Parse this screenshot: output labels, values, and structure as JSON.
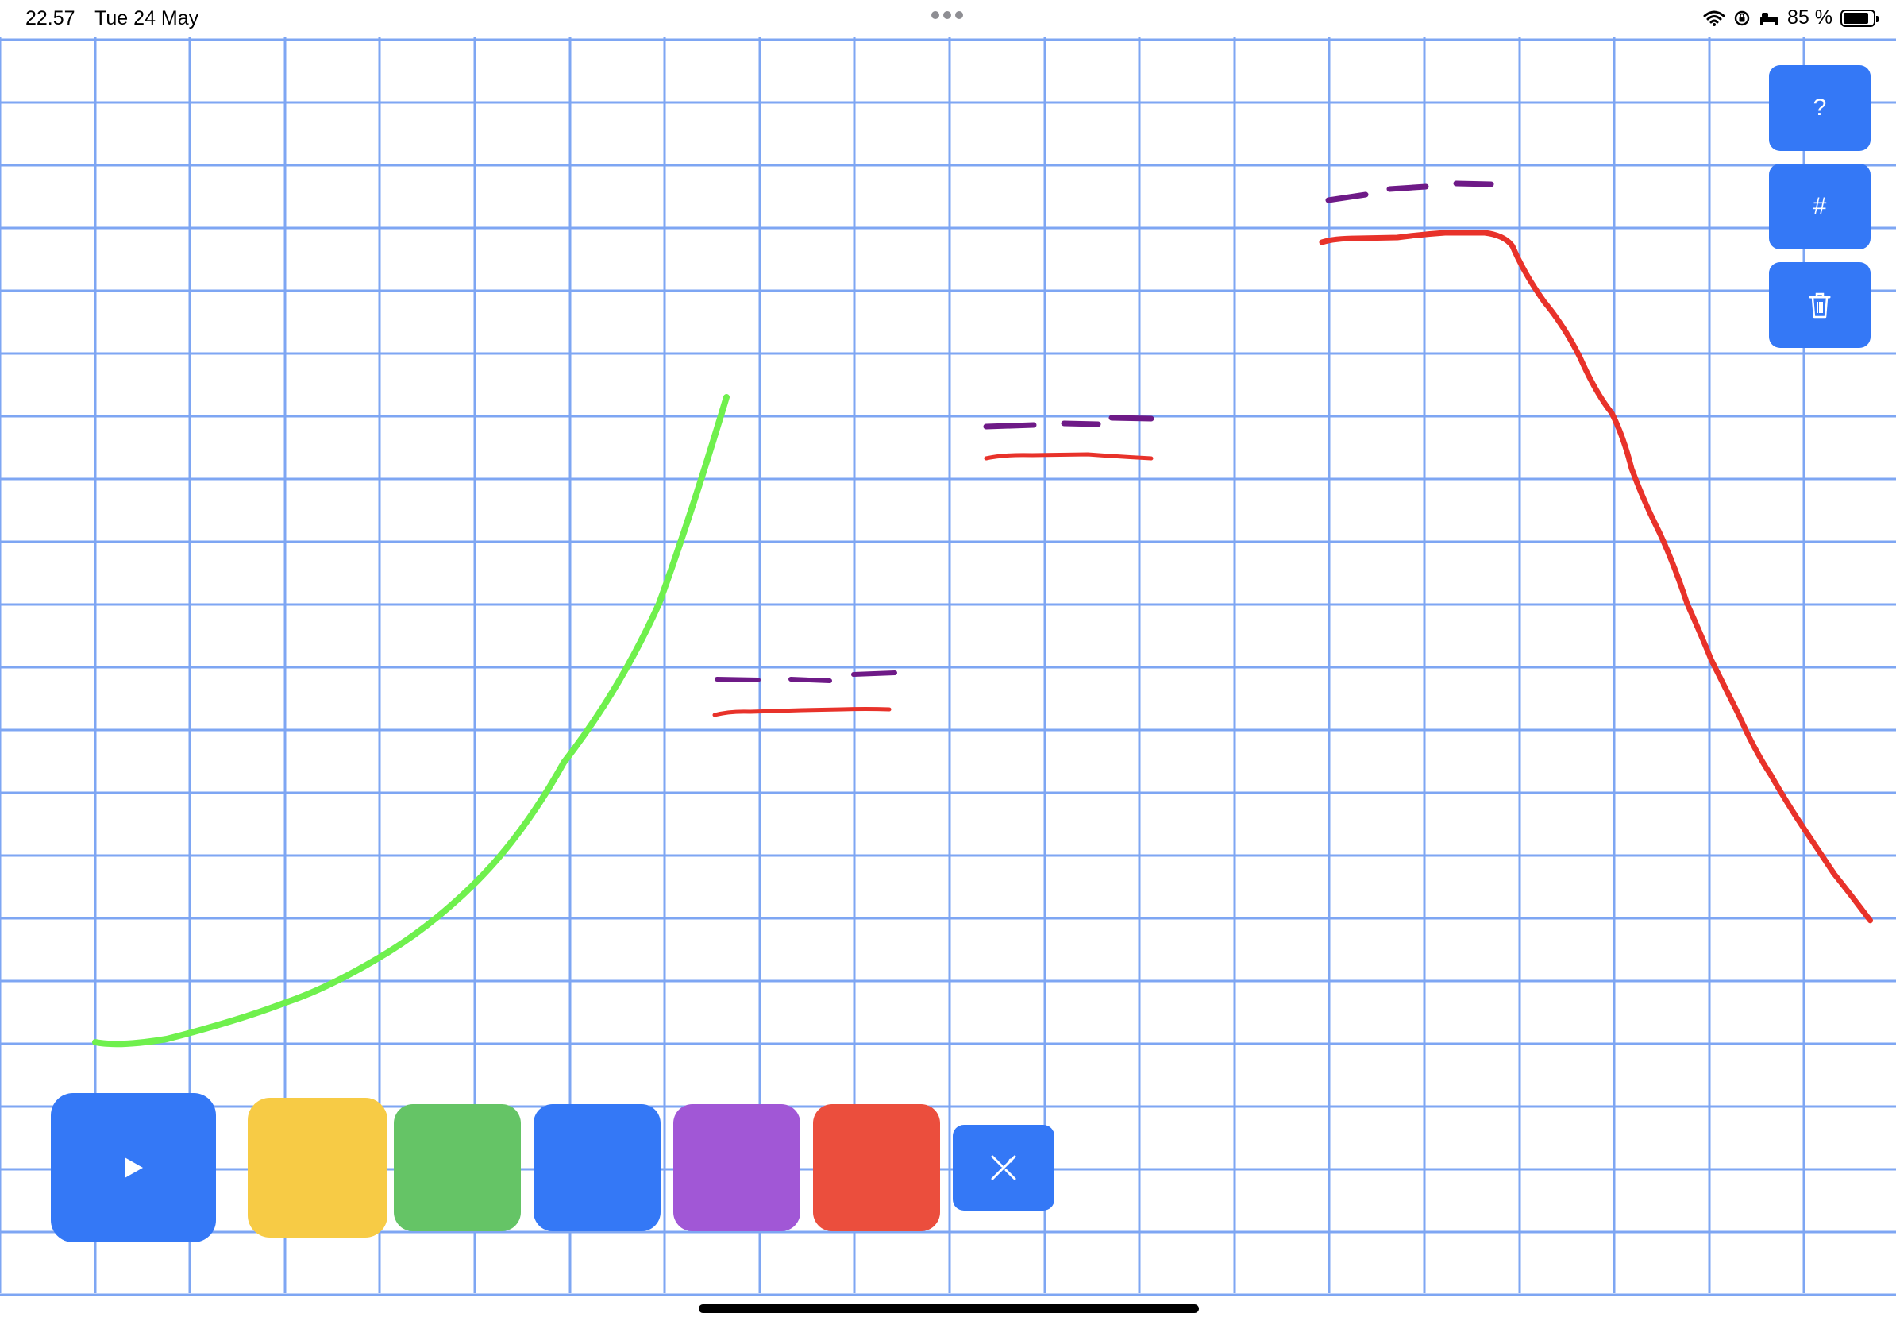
{
  "status_bar": {
    "time": "22.57",
    "date": "Tue 24 May",
    "battery_text": "85 %",
    "battery_level": 0.85,
    "icons": [
      "wifi-icon",
      "orientation-lock-icon",
      "sleep-focus-icon",
      "battery-icon"
    ]
  },
  "side_buttons": [
    {
      "name": "help-button",
      "label": "?",
      "icon": "question-icon"
    },
    {
      "name": "grid-toggle-button",
      "label": "#",
      "icon": "grid-icon"
    },
    {
      "name": "clear-button",
      "label": "",
      "icon": "trash-icon"
    }
  ],
  "toolbar": {
    "play_icon": "play-icon",
    "colors": [
      {
        "name": "yellow",
        "hex": "#f7cb45"
      },
      {
        "name": "green",
        "hex": "#65c466"
      },
      {
        "name": "blue",
        "hex": "#3478f6"
      },
      {
        "name": "purple",
        "hex": "#a157d6"
      },
      {
        "name": "red",
        "hex": "#eb4e3d"
      }
    ],
    "eraser_icon": "eraser-icon"
  },
  "colors": {
    "accent": "#3478f6",
    "grid_line": "#7ea6f3",
    "stroke_green": "#6ff04d",
    "stroke_red": "#e8322a",
    "stroke_purple": "#6e1a87"
  }
}
